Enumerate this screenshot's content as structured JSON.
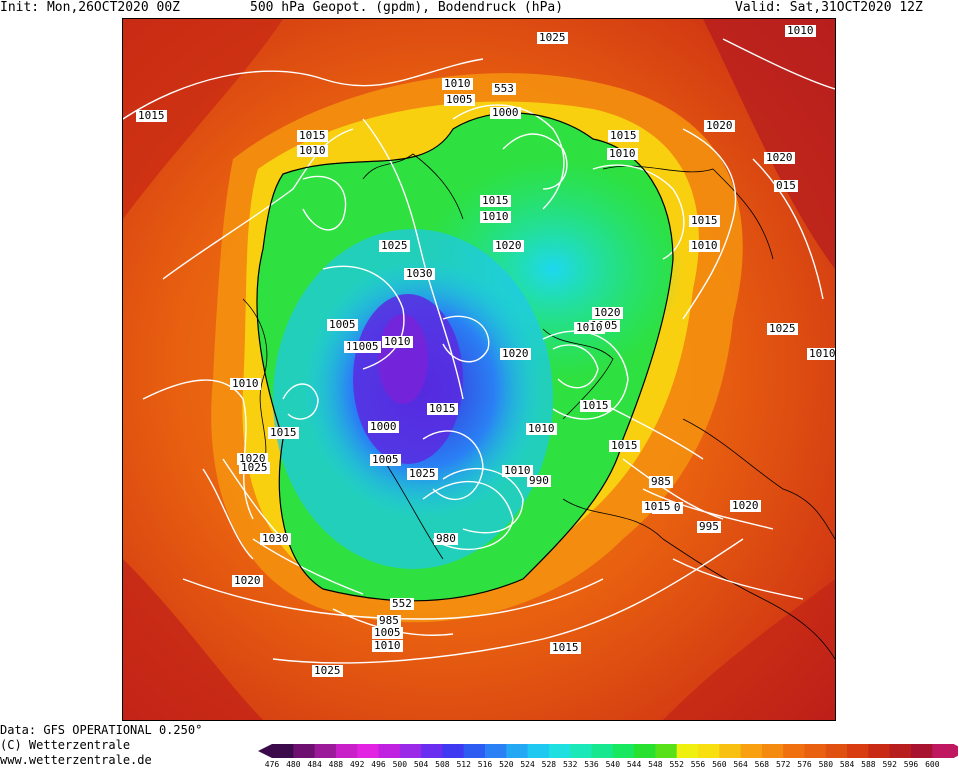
{
  "header": {
    "init": "Init: Mon,26OCT2020 00Z",
    "title": "500 hPa Geopot. (gpdm), Bodendruck (hPa)",
    "valid": "Valid: Sat,31OCT2020 12Z"
  },
  "footer": {
    "data_line": "Data: GFS OPERATIONAL 0.250°",
    "copyright": "(C) Wetterzentrale",
    "url": "www.wetterzentrale.de"
  },
  "colorbar": {
    "labels": [
      "476",
      "480",
      "484",
      "488",
      "492",
      "496",
      "500",
      "504",
      "508",
      "512",
      "516",
      "520",
      "524",
      "528",
      "532",
      "536",
      "540",
      "544",
      "548",
      "552",
      "556",
      "560",
      "564",
      "568",
      "572",
      "576",
      "580",
      "584",
      "588",
      "592",
      "596",
      "600"
    ],
    "colors": [
      "#3a0a4a",
      "#6e1070",
      "#9a1a9a",
      "#c81fc8",
      "#e224e2",
      "#c020e0",
      "#9a2ae8",
      "#6a2ef0",
      "#3f3af2",
      "#2d5cf2",
      "#2a80f4",
      "#25a8f4",
      "#1ec8f0",
      "#1ee0e0",
      "#1ae8b8",
      "#17e890",
      "#18e860",
      "#28e030",
      "#58e018",
      "#f0f010",
      "#f8e010",
      "#f8c010",
      "#f8a010",
      "#f48a10",
      "#f07010",
      "#e86010",
      "#e05010",
      "#d83c10",
      "#c82a14",
      "#b81e1e",
      "#a81430",
      "#c01860"
    ]
  },
  "map": {
    "region": "Northern Hemisphere polar stereographic",
    "isobar_labels": [
      "1025",
      "1010",
      "1010",
      "553",
      "1005",
      "1000",
      "1015",
      "1020",
      "1015",
      "1010",
      "1010",
      "1020",
      "1015",
      "015",
      "1015",
      "1010",
      "1015",
      "1020",
      "1025",
      "1010",
      "1030",
      "1020",
      "1005",
      "1025",
      "1010",
      "1010",
      "1005",
      "1010",
      "1020",
      "1010",
      "1005",
      "1015",
      "1010",
      "1015",
      "1000",
      "1010",
      "1015",
      "1015",
      "1005",
      "1010",
      "990",
      "985",
      "1020",
      "1020",
      "1025",
      "995",
      "1025",
      "1015",
      "980",
      "1030",
      "552",
      "1020",
      "985",
      "1005",
      "1010",
      "1015",
      "1025",
      "1020"
    ],
    "height_contour_label": "552"
  }
}
